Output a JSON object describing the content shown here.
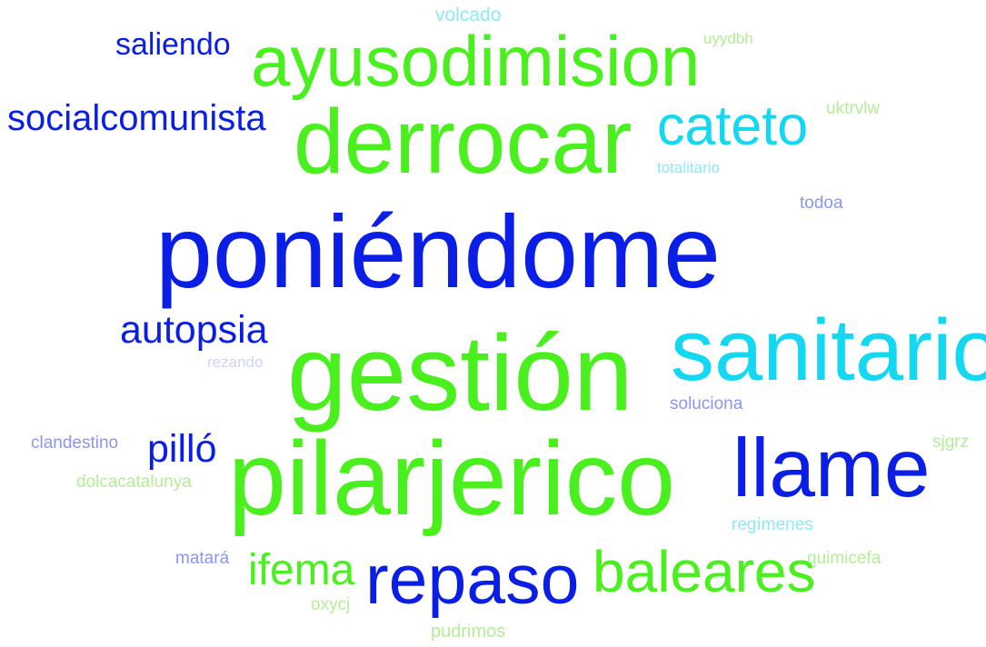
{
  "words": [
    {
      "text": "poniéndome",
      "color": "#0a1ee6"
    },
    {
      "text": "gestión",
      "color": "#4af01e"
    },
    {
      "text": "pilarjerico",
      "color": "#4af01e"
    },
    {
      "text": "derrocar",
      "color": "#4af01e"
    },
    {
      "text": "ayusodimision",
      "color": "#4af01e"
    },
    {
      "text": "sanitario",
      "color": "#14d8f2"
    },
    {
      "text": "llame",
      "color": "#0a1ee6"
    },
    {
      "text": "repaso",
      "color": "#0a1ee6"
    },
    {
      "text": "cateto",
      "color": "#14d8f2"
    },
    {
      "text": "baleares",
      "color": "#4af01e"
    },
    {
      "text": "autopsia",
      "color": "#0a1ee6"
    },
    {
      "text": "socialcomunista",
      "color": "#0a1ee6"
    },
    {
      "text": "ifema",
      "color": "#4af01e"
    },
    {
      "text": "saliendo",
      "color": "#0a1ee6"
    },
    {
      "text": "pilló",
      "color": "#0a1ee6"
    },
    {
      "text": "volcado",
      "color": "#8fe8f5"
    },
    {
      "text": "uyydbh",
      "color": "#b4ee96"
    },
    {
      "text": "uktrvlw",
      "color": "#b4ee96"
    },
    {
      "text": "totalitario",
      "color": "#8fe8f5"
    },
    {
      "text": "todoa",
      "color": "#8c96ee"
    },
    {
      "text": "rezando",
      "color": "#cfd3f7"
    },
    {
      "text": "soluciona",
      "color": "#8c96ee"
    },
    {
      "text": "clandestino",
      "color": "#8c96ee"
    },
    {
      "text": "sjgrz",
      "color": "#b4ee96"
    },
    {
      "text": "dolcacatalunya",
      "color": "#b4ee96"
    },
    {
      "text": "regímenes",
      "color": "#8fe8f5"
    },
    {
      "text": "matará",
      "color": "#8c96ee"
    },
    {
      "text": "quimicefa",
      "color": "#b4ee96"
    },
    {
      "text": "oxycj",
      "color": "#b4ee96"
    },
    {
      "text": "pudrimos",
      "color": "#b4ee96"
    }
  ]
}
